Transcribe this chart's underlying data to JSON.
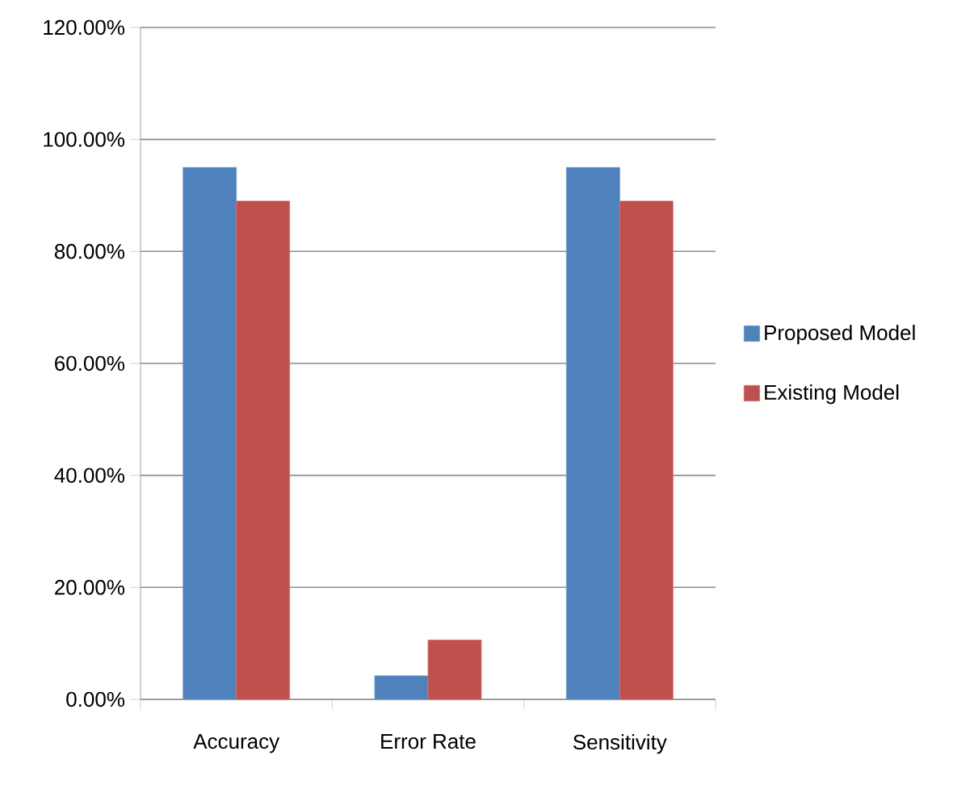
{
  "chart_data": {
    "type": "bar",
    "categories": [
      "Accuracy",
      "Error Rate",
      "Sensitivity"
    ],
    "series": [
      {
        "name": "Proposed Model",
        "color": "#4f81bd",
        "values": [
          95,
          4.2,
          95
        ]
      },
      {
        "name": "Existing Model",
        "color": "#c0504d",
        "values": [
          89,
          10.6,
          89
        ]
      }
    ],
    "ylim": [
      0,
      120
    ],
    "yticks": [
      {
        "value": 0,
        "label": "0.00%"
      },
      {
        "value": 20,
        "label": "20.00%"
      },
      {
        "value": 40,
        "label": "40.00%"
      },
      {
        "value": 60,
        "label": "60.00%"
      },
      {
        "value": 80,
        "label": "80.00%"
      },
      {
        "value": 100,
        "label": "100.00%"
      },
      {
        "value": 120,
        "label": "120.00%"
      }
    ],
    "grid": "y",
    "legend": "right"
  }
}
